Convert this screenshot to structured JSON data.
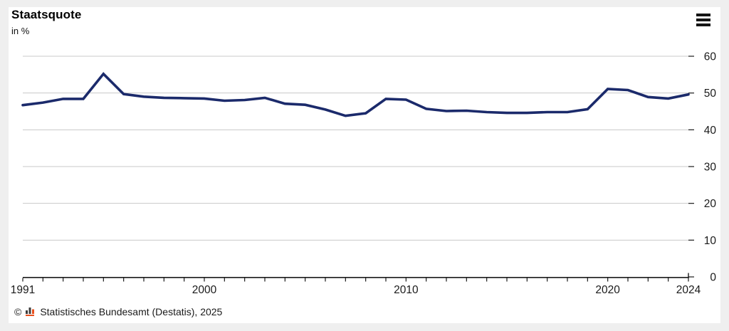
{
  "header": {
    "title": "Staatsquote",
    "subtitle": "in %"
  },
  "menu": {
    "icon": "hamburger-menu"
  },
  "footer": {
    "copyright_symbol": "©",
    "logo_icon": "destatis-bar-chart-logo",
    "source_text": "Statistisches Bundesamt (Destatis), 2025"
  },
  "colors": {
    "line": "#1b2a6b",
    "grid": "#c8c8c8",
    "axis": "#1a1a1a",
    "card_background": "#ffffff",
    "page_background": "#efefef",
    "logo_orange": "#e8501e",
    "logo_dark": "#3d3d3d"
  },
  "chart_data": {
    "type": "line",
    "title": "Staatsquote",
    "ylabel": "in %",
    "xlabel": "",
    "grid": "horizontal",
    "legend": "none",
    "xlim": [
      1991,
      2024
    ],
    "ylim": [
      0,
      60
    ],
    "y_ticks": [
      0,
      10,
      20,
      30,
      40,
      50,
      60
    ],
    "x_tick_labels": [
      "1991",
      "2000",
      "2010",
      "2020",
      "2024"
    ],
    "x_tick_label_years": [
      1991,
      2000,
      2010,
      2020,
      2024
    ],
    "series_name": "Staatsquote in %",
    "x": [
      1991,
      1992,
      1993,
      1994,
      1995,
      1996,
      1997,
      1998,
      1999,
      2000,
      2001,
      2002,
      2003,
      2004,
      2005,
      2006,
      2007,
      2008,
      2009,
      2010,
      2011,
      2012,
      2013,
      2014,
      2015,
      2016,
      2017,
      2018,
      2019,
      2020,
      2021,
      2022,
      2023,
      2024
    ],
    "values": [
      46.7,
      47.4,
      48.4,
      48.4,
      55.2,
      49.7,
      49.0,
      48.7,
      48.6,
      48.5,
      47.9,
      48.1,
      48.7,
      47.1,
      46.8,
      45.5,
      43.8,
      44.5,
      48.4,
      48.2,
      45.7,
      45.1,
      45.2,
      44.8,
      44.6,
      44.6,
      44.8,
      44.8,
      45.6,
      51.1,
      50.8,
      48.9,
      48.5,
      49.6
    ]
  }
}
